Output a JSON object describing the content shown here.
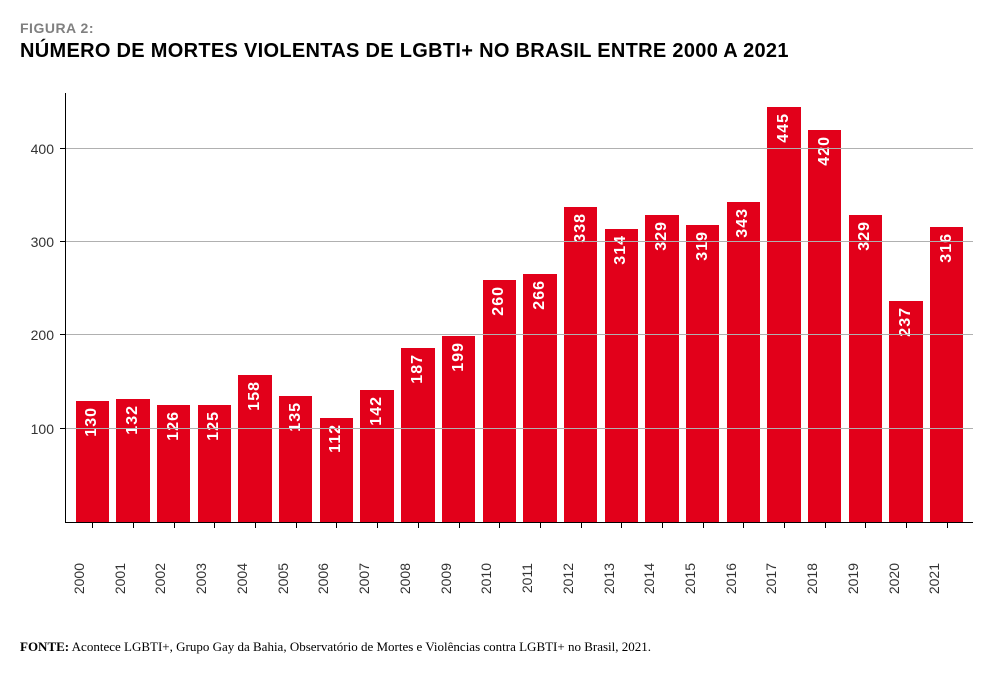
{
  "figure_label": "FIGURA 2:",
  "title": "NÚMERO DE MORTES VIOLENTAS DE LGBTI+ NO BRASIL ENTRE 2000 A 2021",
  "chart": {
    "type": "bar",
    "categories": [
      "2000",
      "2001",
      "2002",
      "2003",
      "2004",
      "2005",
      "2006",
      "2007",
      "2008",
      "2009",
      "2010",
      "2011",
      "2012",
      "2013",
      "2014",
      "2015",
      "2016",
      "2017",
      "2018",
      "2019",
      "2020",
      "2021"
    ],
    "values": [
      130,
      132,
      126,
      125,
      158,
      135,
      112,
      142,
      187,
      199,
      260,
      266,
      338,
      314,
      329,
      319,
      343,
      445,
      420,
      329,
      237,
      316
    ],
    "bar_color": "#e2001a",
    "ylim": [
      0,
      460
    ],
    "yticks": [
      100,
      200,
      300,
      400
    ],
    "grid_color": "#b0b0b0",
    "axis_color": "#000000",
    "background_color": "#ffffff",
    "value_label_color": "#ffffff",
    "value_label_fontsize": 16,
    "axis_label_fontsize": 14,
    "bar_width_ratio": 0.82,
    "title_color": "#000000",
    "title_fontsize": 20,
    "figure_label_color": "#808080",
    "figure_label_fontsize": 14
  },
  "source": {
    "label": "FONTE:",
    "text": "Acontece LGBTI+, Grupo Gay da Bahia, Observatório de Mortes e Violências contra LGBTI+ no Brasil, 2021."
  }
}
